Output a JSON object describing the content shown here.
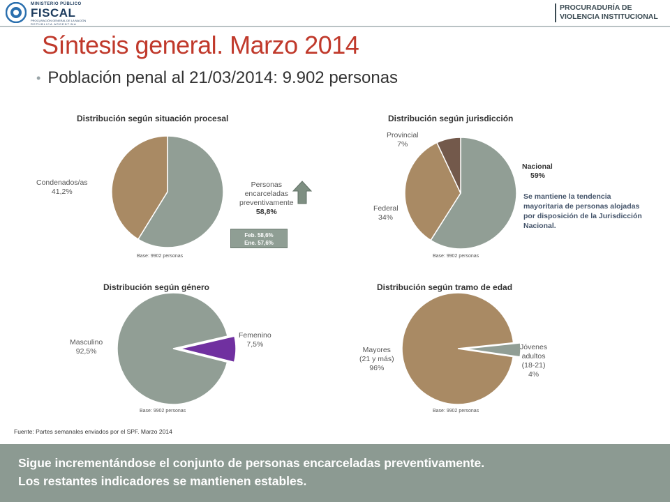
{
  "header": {
    "logo_small": "MINISTERIO PÚBLICO",
    "logo_big": "FISCAL",
    "logo_sub1": "PROCURACIÓN GENERAL DE LA NACIÓN",
    "logo_sub2": "REPÚBLICA ARGENTINA",
    "brand_line1": "PROCURADURÍA DE",
    "brand_line2": "VIOLENCIA INSTITUCIONAL"
  },
  "title": "Síntesis general. Marzo 2014",
  "subtitle": {
    "prefix": "Población penal al 21/03/2014: ",
    "number": "9.902",
    "suffix": " personas"
  },
  "colors": {
    "gray_green": "#919e95",
    "tan": "#a98a64",
    "brown": "#73594b",
    "purple": "#7030a0",
    "title_red": "#c0392b",
    "footer_bg": "#8c9a92"
  },
  "chart_data": [
    {
      "type": "pie",
      "title": "Distribución según situación procesal",
      "slices": [
        {
          "label": "Personas encarceladas preventivamente",
          "label_lines": [
            "Personas",
            "encarceladas",
            "preventivamente"
          ],
          "display": "58,8%",
          "value": 58.8,
          "color": "#919e95"
        },
        {
          "label": "Condenados/as",
          "label_lines": [
            "Condenados/as"
          ],
          "display": "41,2%",
          "value": 41.2,
          "color": "#a98a64"
        }
      ],
      "base": "Base: 9902 personas",
      "comparison": [
        "Feb. 58,6%",
        "Ene. 57,6%"
      ]
    },
    {
      "type": "pie",
      "title": "Distribución según jurisdicción",
      "slices": [
        {
          "label": "Nacional",
          "label_lines": [
            "Nacional"
          ],
          "display": "59%",
          "value": 59,
          "color": "#919e95"
        },
        {
          "label": "Federal",
          "label_lines": [
            "Federal"
          ],
          "display": "34%",
          "value": 34,
          "color": "#a98a64"
        },
        {
          "label": "Provincial",
          "label_lines": [
            "Provincial"
          ],
          "display": "7%",
          "value": 7,
          "color": "#73594b"
        }
      ],
      "base": "Base: 9902 personas",
      "note": "Se mantiene la tendencia mayoritaria de personas alojadas por disposición de la Jurisdicción Nacional."
    },
    {
      "type": "pie",
      "title": "Distribución según género",
      "slices": [
        {
          "label": "Femenino",
          "label_lines": [
            "Femenino"
          ],
          "display": "7,5%",
          "value": 7.5,
          "color": "#7030a0",
          "exploded": true
        },
        {
          "label": "Masculino",
          "label_lines": [
            "Masculino"
          ],
          "display": "92,5%",
          "value": 92.5,
          "color": "#919e95"
        }
      ],
      "base": "Base: 9902 personas"
    },
    {
      "type": "pie",
      "title": "Distribución según tramo de edad",
      "slices": [
        {
          "label": "Jóvenes adultos (18-21)",
          "label_lines": [
            "Jóvenes",
            "adultos",
            "(18-21)"
          ],
          "display": "4%",
          "value": 4,
          "color": "#919e95",
          "exploded": true
        },
        {
          "label": "Mayores (21 y más)",
          "label_lines": [
            "Mayores",
            "(21 y más)"
          ],
          "display": "96%",
          "value": 96,
          "color": "#a98a64"
        }
      ],
      "base": "Base: 9902 personas"
    }
  ],
  "source": "Fuente: Partes semanales enviados por el SPF. Marzo 2014",
  "footer": {
    "line1": "Sigue incrementándose el conjunto de personas encarceladas preventivamente.",
    "line2": "Los restantes indicadores se mantienen estables."
  }
}
